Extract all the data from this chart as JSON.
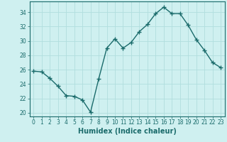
{
  "x": [
    0,
    1,
    2,
    3,
    4,
    5,
    6,
    7,
    8,
    9,
    10,
    11,
    12,
    13,
    14,
    15,
    16,
    17,
    18,
    19,
    20,
    21,
    22,
    23
  ],
  "y": [
    25.8,
    25.7,
    24.8,
    23.7,
    22.4,
    22.3,
    21.8,
    20.1,
    24.7,
    29.0,
    30.3,
    29.0,
    29.8,
    31.3,
    32.3,
    33.8,
    34.7,
    33.8,
    33.8,
    32.2,
    30.2,
    28.7,
    27.0,
    26.3
  ],
  "xlabel": "Humidex (Indice chaleur)",
  "ylabel": "",
  "xlim": [
    -0.5,
    23.5
  ],
  "ylim": [
    19.5,
    35.5
  ],
  "yticks": [
    20,
    22,
    24,
    26,
    28,
    30,
    32,
    34
  ],
  "xticks": [
    0,
    1,
    2,
    3,
    4,
    5,
    6,
    7,
    8,
    9,
    10,
    11,
    12,
    13,
    14,
    15,
    16,
    17,
    18,
    19,
    20,
    21,
    22,
    23
  ],
  "line_color": "#1a6b6b",
  "marker": "+",
  "marker_size": 4,
  "bg_color": "#cff0f0",
  "grid_color": "#b0dede",
  "tick_fontsize": 5.5,
  "xlabel_fontsize": 7,
  "line_width": 1.0
}
